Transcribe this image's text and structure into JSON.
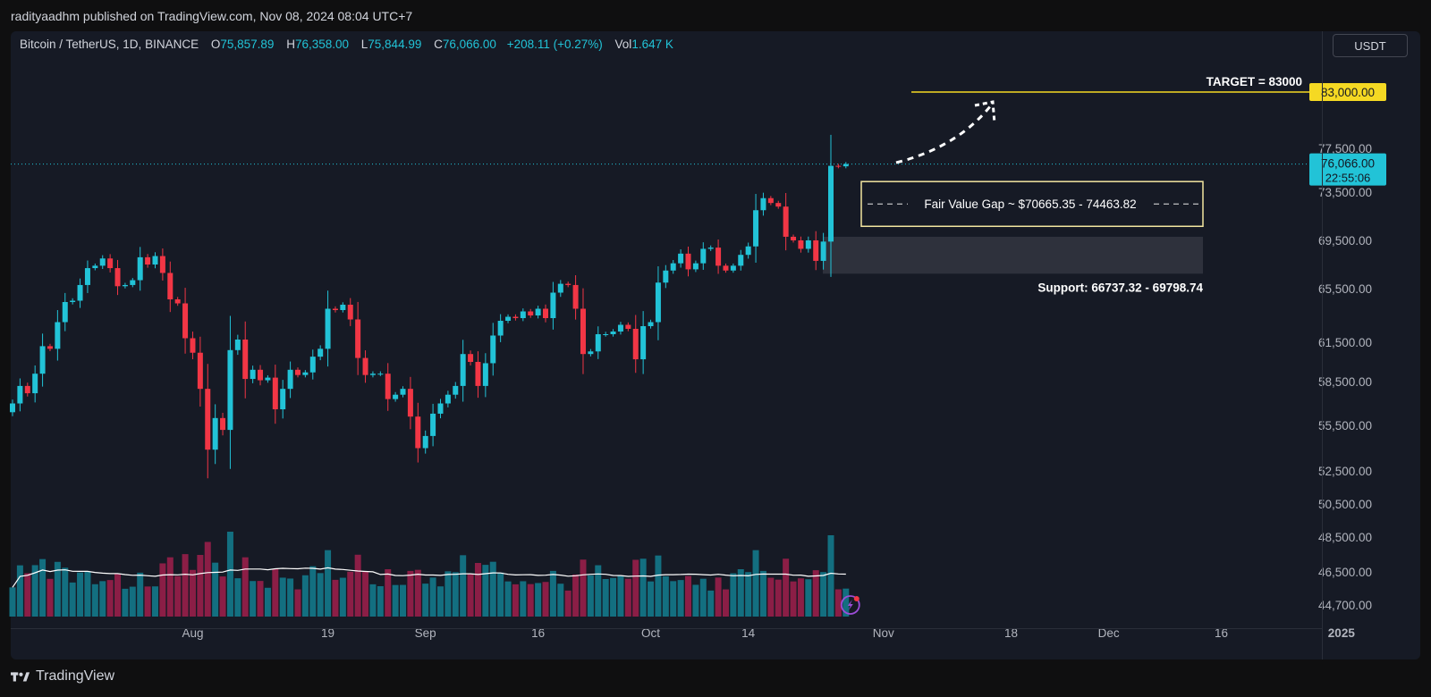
{
  "header": {
    "published": "radityaadhm published on TradingView.com, Nov 08, 2024 08:04 UTC+7"
  },
  "legend": {
    "symbol": "Bitcoin / TetherUS, 1D, BINANCE",
    "o_label": "O",
    "o": "75,857.89",
    "h_label": "H",
    "h": "76,358.00",
    "l_label": "L",
    "l": "75,844.99",
    "c_label": "C",
    "c": "76,066.00",
    "change": "+208.11 (+0.27%)",
    "vol_label": "Vol",
    "vol": "1.647 K"
  },
  "currency_button": "USDT",
  "footer": {
    "brand": "TradingView"
  },
  "colors": {
    "up": "#22c3d7",
    "down": "#f23645",
    "vol_up": "#136f80",
    "vol_down": "#8b1e46",
    "target": "#f5d923",
    "fvg_border": "#f3e6a0",
    "support_zone": "#2e313c"
  },
  "chart_data": {
    "type": "candlestick",
    "y_axis_ticks": [
      "77,500.00",
      "73,500.00",
      "69,500.00",
      "65,500.00",
      "61,500.00",
      "58,500.00",
      "55,500.00",
      "52,500.00",
      "50,500.00",
      "48,500.00",
      "46,500.00",
      "44,700.00"
    ],
    "y_tick_values": [
      77500,
      73500,
      69500,
      65500,
      61500,
      58500,
      55500,
      52500,
      50500,
      48500,
      46500,
      44700
    ],
    "x_axis_ticks": [
      {
        "label": "Aug",
        "date": "2024-08-01"
      },
      {
        "label": "19",
        "date": "2024-08-19"
      },
      {
        "label": "Sep",
        "date": "2024-09-01"
      },
      {
        "label": "16",
        "date": "2024-09-16"
      },
      {
        "label": "Oct",
        "date": "2024-10-01"
      },
      {
        "label": "14",
        "date": "2024-10-14"
      },
      {
        "label": "Nov",
        "date": "2024-11-01"
      },
      {
        "label": "18",
        "date": "2024-11-18"
      },
      {
        "label": "Dec",
        "date": "2024-12-01"
      },
      {
        "label": "16",
        "date": "2024-12-16"
      },
      {
        "label": "2025",
        "date": "2025-01-01"
      }
    ],
    "first_date": "2024-07-08",
    "closes": [
      57000,
      58200,
      57700,
      59100,
      61200,
      61000,
      63000,
      64500,
      64600,
      65800,
      67200,
      67400,
      68000,
      67200,
      65700,
      65800,
      66200,
      68100,
      67500,
      68200,
      66800,
      64700,
      64400,
      61800,
      60700,
      58000,
      53900,
      56000,
      55200,
      60900,
      61700,
      58700,
      59400,
      58600,
      58800,
      56600,
      58000,
      59400,
      59000,
      59200,
      60400,
      61000,
      64000,
      63900,
      64300,
      63200,
      60300,
      59000,
      59100,
      59100,
      57300,
      57600,
      58000,
      56100,
      54000,
      54800,
      56300,
      57000,
      57600,
      58200,
      60600,
      60000,
      58200,
      59900,
      62000,
      63100,
      63400,
      63300,
      63800,
      63500,
      64000,
      63300,
      65200,
      65900,
      65800,
      64000,
      60600,
      60800,
      62100,
      62100,
      62300,
      62800,
      62500,
      60200,
      62700,
      63000,
      66000,
      67000,
      67600,
      68400,
      67100,
      67600,
      68800,
      68900,
      67400,
      67000,
      67400,
      68300,
      69000,
      72000,
      73000,
      72600,
      72300,
      69800,
      69500,
      68800,
      69500,
      67800,
      69400,
      75900,
      75857,
      76066
    ],
    "target": {
      "label": "TARGET = 83000",
      "value": 83000,
      "axis_label": "83,000.00"
    },
    "last_price": {
      "value": 76066,
      "axis_label": "76,066.00",
      "countdown": "22:55:06"
    },
    "fvg": {
      "label": "Fair Value Gap ~ $70665.35 - 74463.82",
      "low": 70665.35,
      "high": 74463.82
    },
    "support": {
      "label": "Support: 66737.32 - 69798.74",
      "low": 66737.32,
      "high": 69798.74
    }
  }
}
